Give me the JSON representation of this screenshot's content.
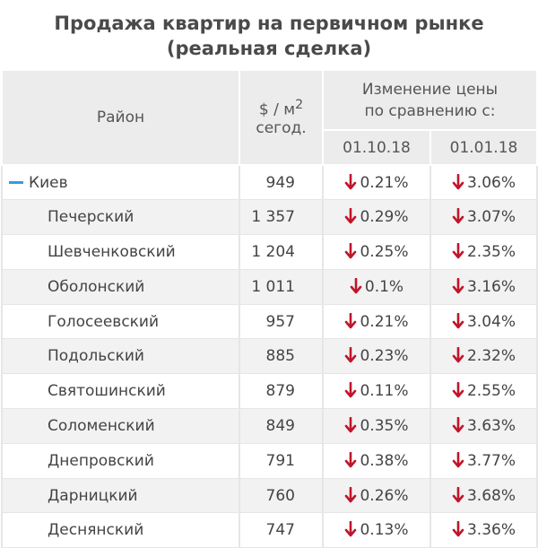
{
  "title_line1": "Продажа квартир на первичном рынке",
  "title_line2": "(реальная сделка)",
  "header": {
    "district": "Район",
    "price_unit": "$ / м",
    "price_sup": "2",
    "price_today": "сегод.",
    "change_line1": "Изменение цены",
    "change_line2": "по сравнению с:",
    "date1": "01.10.18",
    "date2": "01.01.18"
  },
  "colors": {
    "arrow_down": "#c0152a",
    "city_marker": "#3a9ad9"
  },
  "rows": [
    {
      "name": "Киев",
      "price": "949",
      "chg1": "0.21%",
      "chg2": "3.06%"
    },
    {
      "name": "Печерский",
      "price": "1 357",
      "chg1": "0.29%",
      "chg2": "3.07%"
    },
    {
      "name": "Шевченковский",
      "price": "1 204",
      "chg1": "0.25%",
      "chg2": "2.35%"
    },
    {
      "name": "Оболонский",
      "price": "1 011",
      "chg1": "0.1%",
      "chg2": "3.16%"
    },
    {
      "name": "Голосеевский",
      "price": "957",
      "chg1": "0.21%",
      "chg2": "3.04%"
    },
    {
      "name": "Подольский",
      "price": "885",
      "chg1": "0.23%",
      "chg2": "2.32%"
    },
    {
      "name": "Святошинский",
      "price": "879",
      "chg1": "0.11%",
      "chg2": "2.55%"
    },
    {
      "name": "Соломенский",
      "price": "849",
      "chg1": "0.35%",
      "chg2": "3.63%"
    },
    {
      "name": "Днепровский",
      "price": "791",
      "chg1": "0.38%",
      "chg2": "3.77%"
    },
    {
      "name": "Дарницкий",
      "price": "760",
      "chg1": "0.26%",
      "chg2": "3.68%"
    },
    {
      "name": "Деснянский",
      "price": "747",
      "chg1": "0.13%",
      "chg2": "3.36%"
    }
  ]
}
